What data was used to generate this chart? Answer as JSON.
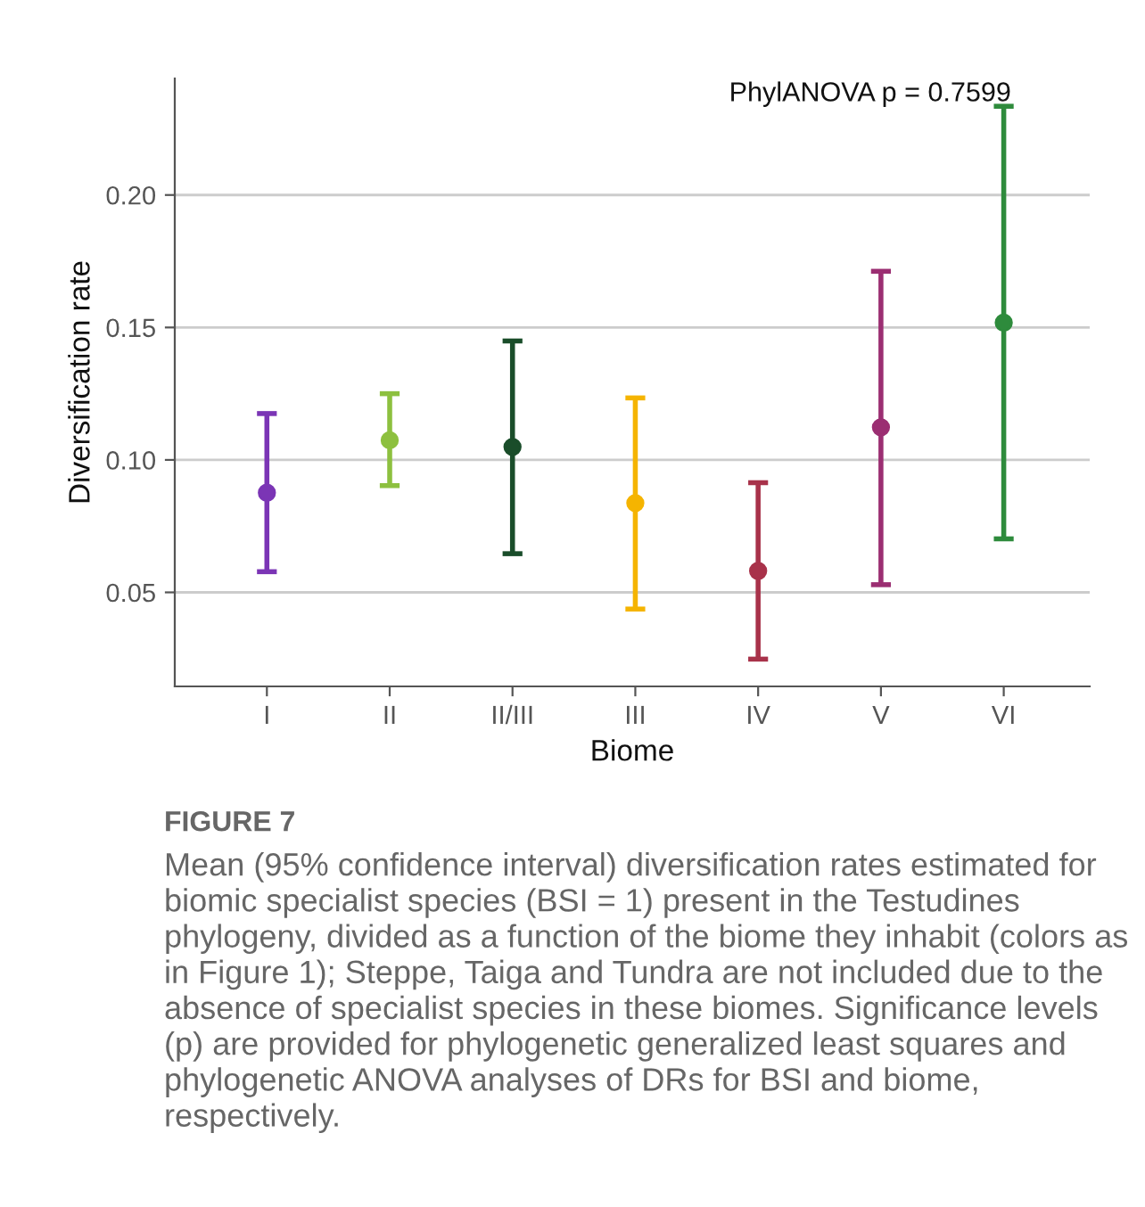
{
  "chart_data": {
    "type": "scatter",
    "xlabel": "Biome",
    "ylabel": "Diversification rate",
    "categories": [
      "I",
      "II",
      "II/III",
      "III",
      "IV",
      "V",
      "VI"
    ],
    "values": [
      0.0876,
      0.1074,
      0.1049,
      0.0837,
      0.0581,
      0.1123,
      0.1518
    ],
    "errors": [
      [
        0.0578,
        0.1175
      ],
      [
        0.0903,
        0.125
      ],
      [
        0.0646,
        0.1449
      ],
      [
        0.0437,
        0.1234
      ],
      [
        0.0248,
        0.0914
      ],
      [
        0.0529,
        0.1712
      ],
      [
        0.0702,
        0.2335
      ]
    ],
    "colors": [
      "#7b35b5",
      "#8dc03f",
      "#1a4d2a",
      "#f5b400",
      "#a8324a",
      "#9b2e72",
      "#2e8b3c"
    ],
    "ylim": [
      0.0145,
      0.244
    ],
    "yticks": [
      {
        "value": 0.05,
        "label": "0.05"
      },
      {
        "value": 0.1,
        "label": "0.10"
      },
      {
        "value": 0.15,
        "label": "0.15"
      },
      {
        "value": 0.2,
        "label": "0.20"
      }
    ],
    "grid": "y",
    "marker": "circle",
    "annotations": [
      "PhylANOVA p = 0.7599",
      "FIGURE 7",
      "Mean (95% confidence interval) diversification rates estimated for biomic specialist species (BSI = 1) present in the Testudines phylogeny, divided as a function of the biome they inhabit (colors as in Figure 1); Steppe, Taiga and Tundra are not included due to the absence of specialist species in these biomes. Significance levels (p) are provided for phylogenetic generalized least squares and phylogenetic ANOVA analyses of DRs for BSI and biome, respectively."
    ]
  }
}
